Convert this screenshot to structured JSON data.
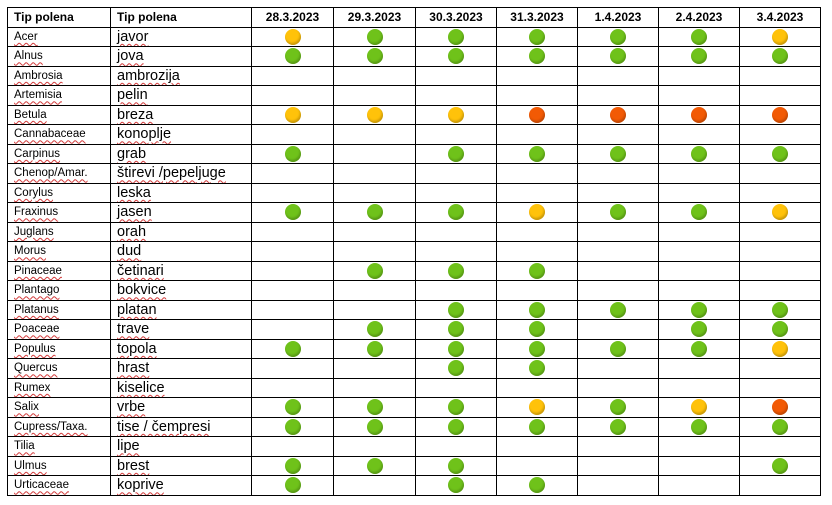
{
  "table": {
    "headers": [
      "Tip polena",
      "Tip polena",
      "28.3.2023",
      "29.3.2023",
      "30.3.2023",
      "31.3.2023",
      "1.4.2023",
      "2.4.2023",
      "3.4.2023"
    ],
    "level_colors": {
      "low": "#6fc21a",
      "moderate": "#ffc20a",
      "high": "#f25a05"
    },
    "rows": [
      {
        "latin": "Acer",
        "local": "javor",
        "levels": [
          "moderate",
          "low",
          "low",
          "low",
          "low",
          "low",
          "moderate"
        ]
      },
      {
        "latin": "Alnus",
        "local": "jova",
        "levels": [
          "low",
          "low",
          "low",
          "low",
          "low",
          "low",
          "low"
        ]
      },
      {
        "latin": "Ambrosia",
        "local": "ambrozija",
        "levels": [
          "",
          "",
          "",
          "",
          "",
          "",
          ""
        ]
      },
      {
        "latin": "Artemisia",
        "local": "pelin",
        "levels": [
          "",
          "",
          "",
          "",
          "",
          "",
          ""
        ]
      },
      {
        "latin": "Betula",
        "local": "breza",
        "levels": [
          "moderate",
          "moderate",
          "moderate",
          "high",
          "high",
          "high",
          "high"
        ]
      },
      {
        "latin": "Cannabaceae",
        "local": "konoplje",
        "levels": [
          "",
          "",
          "",
          "",
          "",
          "",
          ""
        ]
      },
      {
        "latin": "Carpinus",
        "local": "grab",
        "levels": [
          "low",
          "",
          "low",
          "low",
          "low",
          "low",
          "low"
        ]
      },
      {
        "latin": "Chenop/Amar.",
        "local": "štirevi /pepeljuge",
        "levels": [
          "",
          "",
          "",
          "",
          "",
          "",
          ""
        ]
      },
      {
        "latin": "Corylus",
        "local": "leska",
        "levels": [
          "",
          "",
          "",
          "",
          "",
          "",
          ""
        ]
      },
      {
        "latin": "Fraxinus",
        "local": "jasen",
        "levels": [
          "low",
          "low",
          "low",
          "moderate",
          "low",
          "low",
          "moderate"
        ]
      },
      {
        "latin": "Juglans",
        "local": "orah",
        "levels": [
          "",
          "",
          "",
          "",
          "",
          "",
          ""
        ]
      },
      {
        "latin": "Morus",
        "local": "dud",
        "levels": [
          "",
          "",
          "",
          "",
          "",
          "",
          ""
        ]
      },
      {
        "latin": "Pinaceae",
        "local": "četinari",
        "levels": [
          "",
          "low",
          "low",
          "low",
          "",
          "",
          ""
        ]
      },
      {
        "latin": "Plantago",
        "local": "bokvice",
        "levels": [
          "",
          "",
          "",
          "",
          "",
          "",
          ""
        ]
      },
      {
        "latin": "Platanus",
        "local": "platan",
        "levels": [
          "",
          "",
          "low",
          "low",
          "low",
          "low",
          "low"
        ]
      },
      {
        "latin": "Poaceae",
        "local": "trave",
        "levels": [
          "",
          "low",
          "low",
          "low",
          "",
          "low",
          "low"
        ]
      },
      {
        "latin": "Populus",
        "local": "topola",
        "levels": [
          "low",
          "low",
          "low",
          "low",
          "low",
          "low",
          "moderate"
        ]
      },
      {
        "latin": "Quercus",
        "local": "hrast",
        "levels": [
          "",
          "",
          "low",
          "low",
          "",
          "",
          ""
        ]
      },
      {
        "latin": "Rumex",
        "local": "kiselice",
        "levels": [
          "",
          "",
          "",
          "",
          "",
          "",
          ""
        ]
      },
      {
        "latin": "Salix",
        "local": "vrbe",
        "levels": [
          "low",
          "low",
          "low",
          "moderate",
          "low",
          "moderate",
          "high"
        ]
      },
      {
        "latin": "Cupress/Taxa.",
        "local": "tise / čempresi",
        "levels": [
          "low",
          "low",
          "low",
          "low",
          "low",
          "low",
          "low"
        ]
      },
      {
        "latin": "Tilia",
        "local": "lipe",
        "levels": [
          "",
          "",
          "",
          "",
          "",
          "",
          ""
        ]
      },
      {
        "latin": "Ulmus",
        "local": "brest",
        "levels": [
          "low",
          "low",
          "low",
          "",
          "",
          "",
          "low"
        ]
      },
      {
        "latin": "Urticaceae",
        "local": "koprive",
        "levels": [
          "low",
          "",
          "low",
          "low",
          "",
          "",
          ""
        ]
      }
    ]
  }
}
